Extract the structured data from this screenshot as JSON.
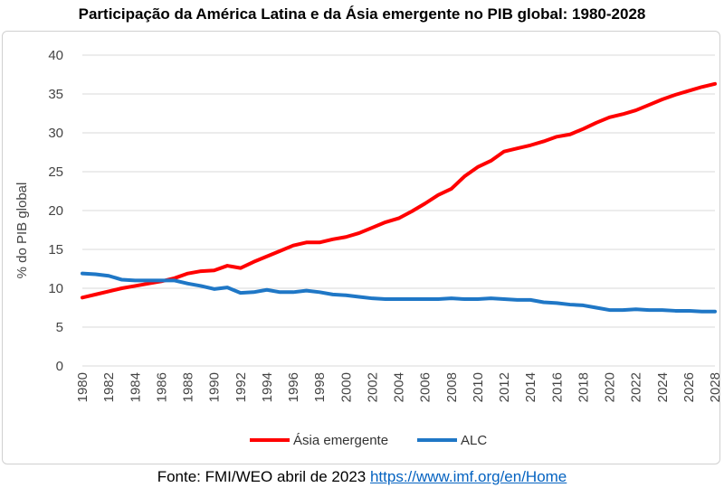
{
  "source": {
    "prefix": "Fonte: FMI/WEO abril de 2023 ",
    "link": "https://www.imf.org/en/Home"
  },
  "chart_data": {
    "type": "line",
    "title": "Participação da América Latina e da Ásia emergente no PIB global: 1980-2028",
    "xlabel": "",
    "ylabel": "% do PIB global",
    "ylim": [
      0,
      40
    ],
    "yticks": [
      0,
      5,
      10,
      15,
      20,
      25,
      30,
      35,
      40
    ],
    "xticks": [
      "1980",
      "1982",
      "1984",
      "1986",
      "1988",
      "1990",
      "1992",
      "1994",
      "1996",
      "1998",
      "2000",
      "2002",
      "2004",
      "2006",
      "2008",
      "2010",
      "2012",
      "2014",
      "2016",
      "2018",
      "2020",
      "2022",
      "2024",
      "2026",
      "2028"
    ],
    "grid": true,
    "legend_position": "bottom",
    "x": [
      1980,
      1981,
      1982,
      1983,
      1984,
      1985,
      1986,
      1987,
      1988,
      1989,
      1990,
      1991,
      1992,
      1993,
      1994,
      1995,
      1996,
      1997,
      1998,
      1999,
      2000,
      2001,
      2002,
      2003,
      2004,
      2005,
      2006,
      2007,
      2008,
      2009,
      2010,
      2011,
      2012,
      2013,
      2014,
      2015,
      2016,
      2017,
      2018,
      2019,
      2020,
      2021,
      2022,
      2023,
      2024,
      2025,
      2026,
      2027,
      2028
    ],
    "series": [
      {
        "name": "Ásia emergente",
        "color": "#ff0000",
        "values": [
          8.8,
          9.2,
          9.6,
          10.0,
          10.3,
          10.6,
          10.9,
          11.3,
          11.9,
          12.2,
          12.3,
          12.9,
          12.6,
          13.4,
          14.1,
          14.8,
          15.5,
          15.9,
          15.9,
          16.3,
          16.6,
          17.1,
          17.8,
          18.5,
          19.0,
          19.9,
          20.9,
          22.0,
          22.8,
          24.4,
          25.6,
          26.4,
          27.6,
          28.0,
          28.4,
          28.9,
          29.5,
          29.8,
          30.5,
          31.3,
          32.0,
          32.4,
          32.9,
          33.6,
          34.3,
          34.9,
          35.4,
          35.9,
          36.3
        ]
      },
      {
        "name": "ALC",
        "color": "#1f77c6",
        "values": [
          11.9,
          11.8,
          11.6,
          11.1,
          11.0,
          11.0,
          11.0,
          11.0,
          10.6,
          10.3,
          9.9,
          10.1,
          9.4,
          9.5,
          9.8,
          9.5,
          9.5,
          9.7,
          9.5,
          9.2,
          9.1,
          8.9,
          8.7,
          8.6,
          8.6,
          8.6,
          8.6,
          8.6,
          8.7,
          8.6,
          8.6,
          8.7,
          8.6,
          8.5,
          8.5,
          8.2,
          8.1,
          7.9,
          7.8,
          7.5,
          7.2,
          7.2,
          7.3,
          7.2,
          7.2,
          7.1,
          7.1,
          7.0,
          7.0
        ]
      }
    ]
  }
}
